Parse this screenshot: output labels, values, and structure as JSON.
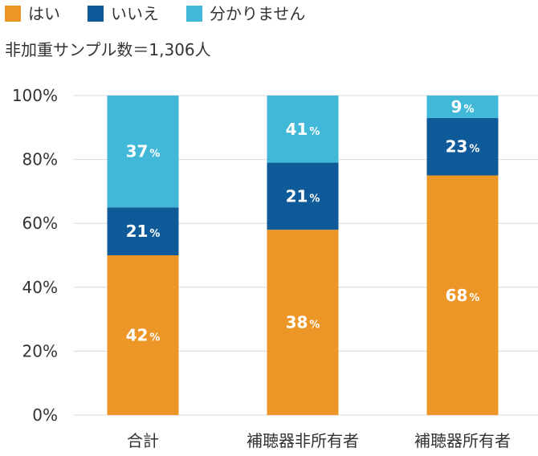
{
  "legend": [
    {
      "label": "はい",
      "color": "#ED9628"
    },
    {
      "label": "いいえ",
      "color": "#0F5A98"
    },
    {
      "label": "分かりません",
      "color": "#41B8D8"
    }
  ],
  "note": "非加重サンプル数＝1,306人",
  "chart_data": {
    "type": "bar",
    "stacked": true,
    "categories": [
      "合計",
      "補聴器非所有者",
      "補聴器所有者"
    ],
    "series": [
      {
        "name": "はい",
        "values": [
          42,
          38,
          68
        ],
        "labels": [
          "42",
          "38",
          "68"
        ],
        "color": "#ED9628"
      },
      {
        "name": "いいえ",
        "values": [
          21,
          21,
          23
        ],
        "labels": [
          "21",
          "21",
          "23"
        ],
        "color": "#0F5A98"
      },
      {
        "name": "分かりません",
        "values": [
          37,
          41,
          9
        ],
        "labels": [
          "37",
          "41",
          "9"
        ],
        "color": "#41B8D8"
      }
    ],
    "display_tops": [
      [
        50,
        65,
        100
      ],
      [
        58,
        79,
        100
      ],
      [
        75,
        93,
        100
      ]
    ],
    "value_suffix": "%",
    "ylim": [
      0,
      100
    ],
    "yticks": [
      "0%",
      "20%",
      "40%",
      "60%",
      "80%",
      "100%"
    ],
    "grid": true
  }
}
